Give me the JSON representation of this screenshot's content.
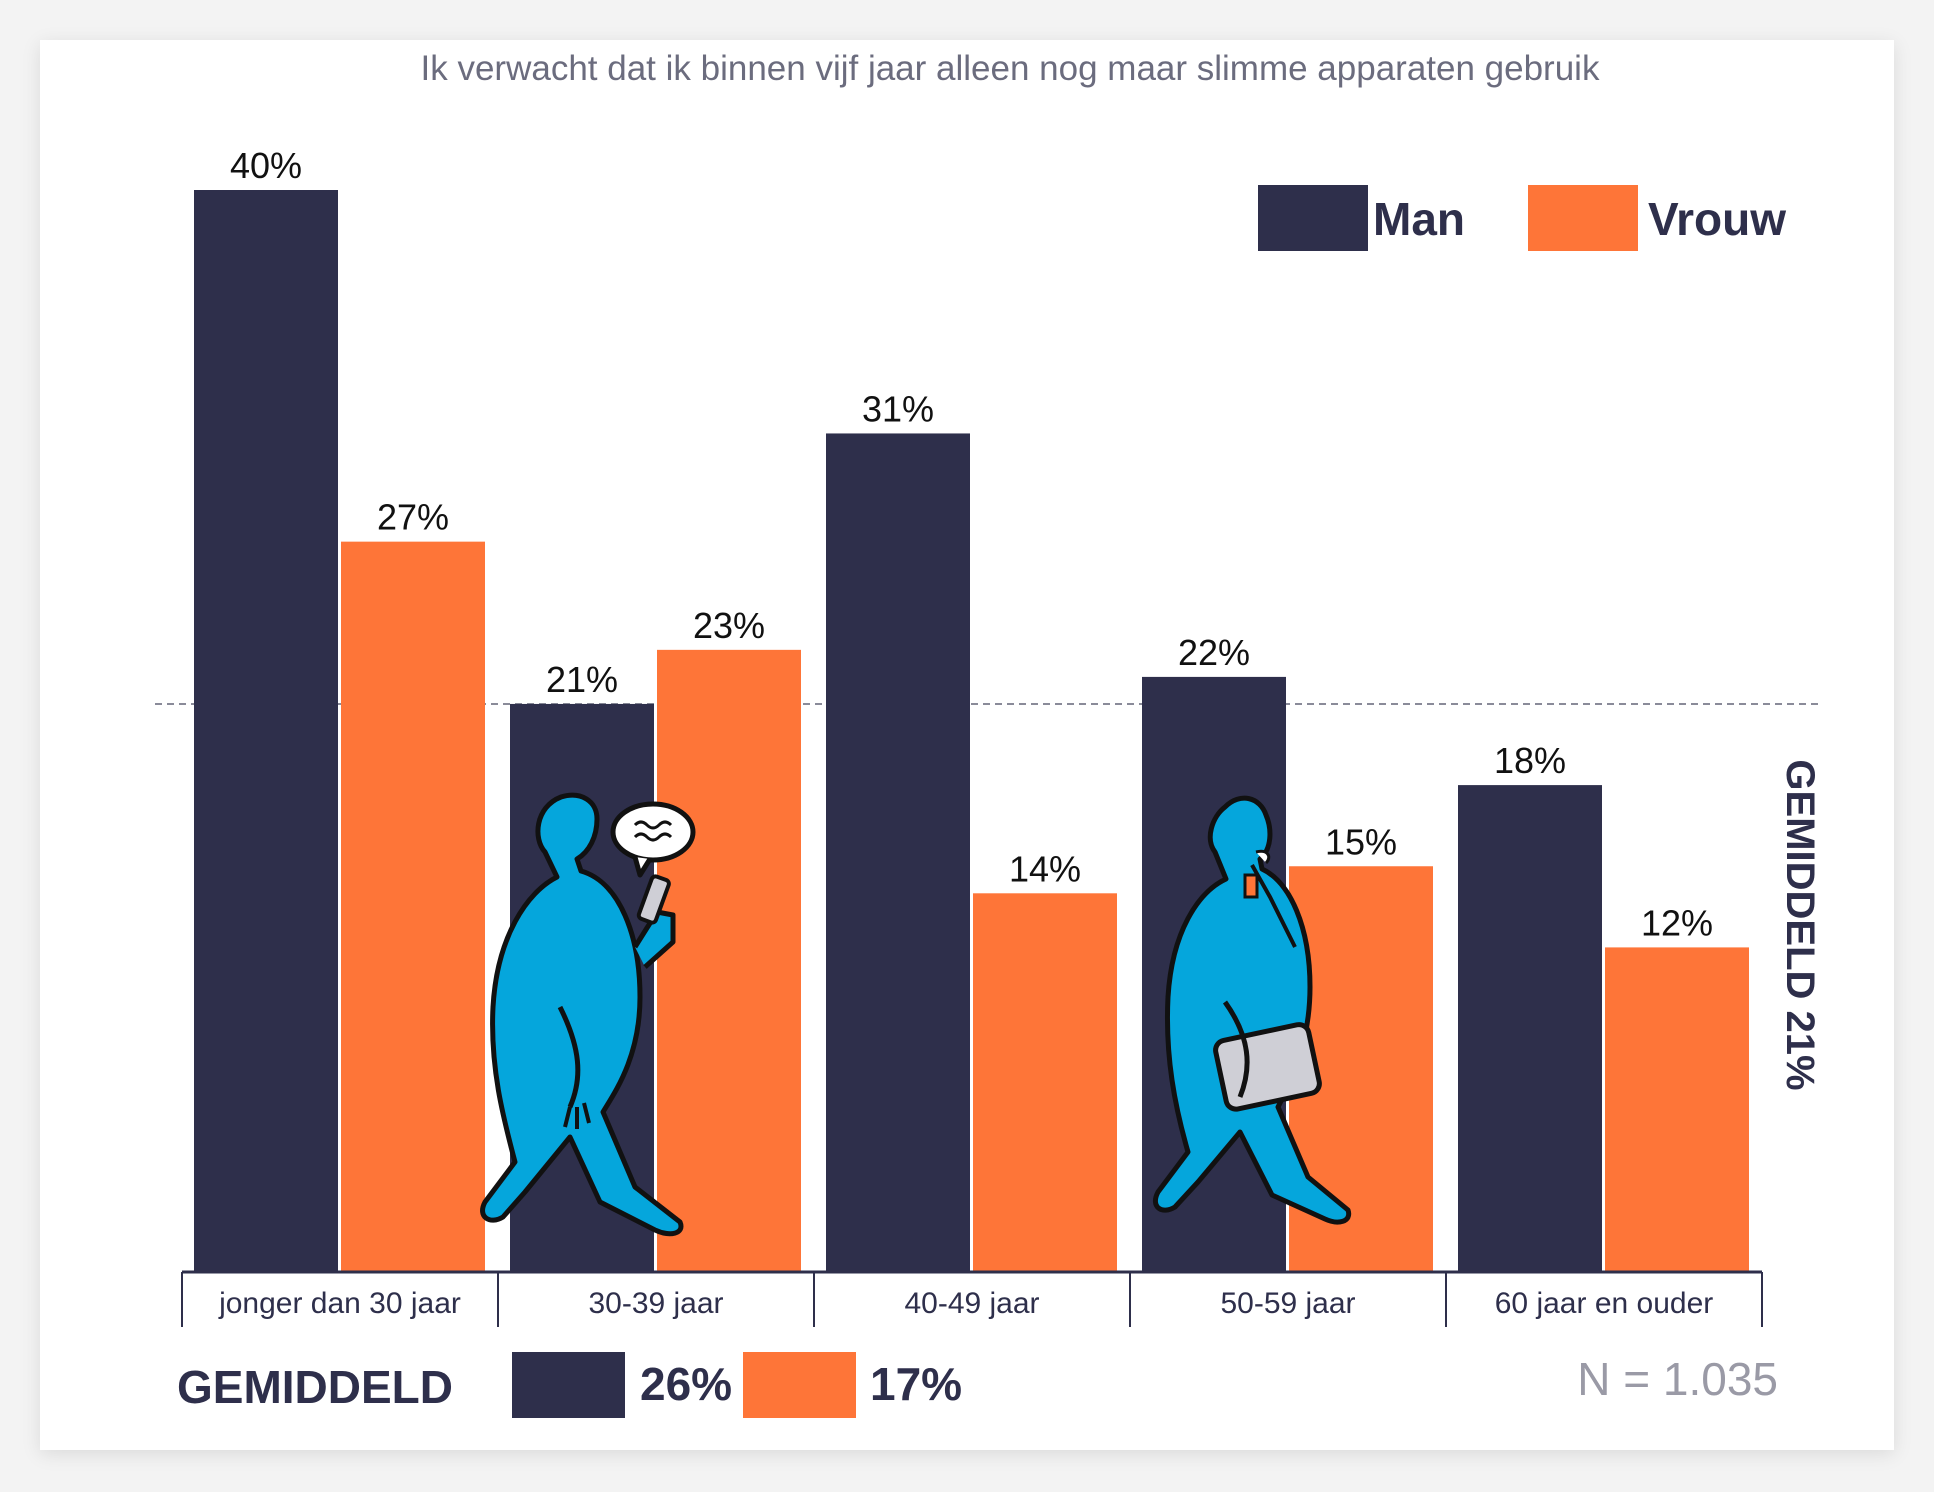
{
  "chart_data": {
    "type": "bar",
    "title": "Ik verwacht dat ik binnen vijf jaar alleen nog maar slimme apparaten gebruik",
    "categories": [
      "jonger dan 30 jaar",
      "30-39 jaar",
      "40-49 jaar",
      "50-59 jaar",
      "60 jaar en ouder"
    ],
    "series": [
      {
        "name": "Man",
        "color": "#2e2f4b",
        "values": [
          40,
          21,
          31,
          22,
          18
        ],
        "labels": [
          "40%",
          "21%",
          "31%",
          "22%",
          "18%"
        ]
      },
      {
        "name": "Vrouw",
        "color": "#fe7538",
        "values": [
          27,
          23,
          14,
          15,
          12
        ],
        "labels": [
          "27%",
          "23%",
          "14%",
          "15%",
          "12%"
        ]
      }
    ],
    "ylim": [
      0,
      40
    ],
    "reference_line": {
      "value": 21,
      "label": "GEMIDDELD 21%"
    },
    "averages": {
      "label": "GEMIDDELD",
      "man": "26%",
      "vrouw": "17%"
    },
    "sample_size": "N = 1.035",
    "legend_position": "top-right",
    "grid": false
  },
  "illustrations": {
    "left": "walking-person-with-phone-icon",
    "right": "walking-person-with-laptop-icon",
    "figure_color": "#05a6dc"
  }
}
